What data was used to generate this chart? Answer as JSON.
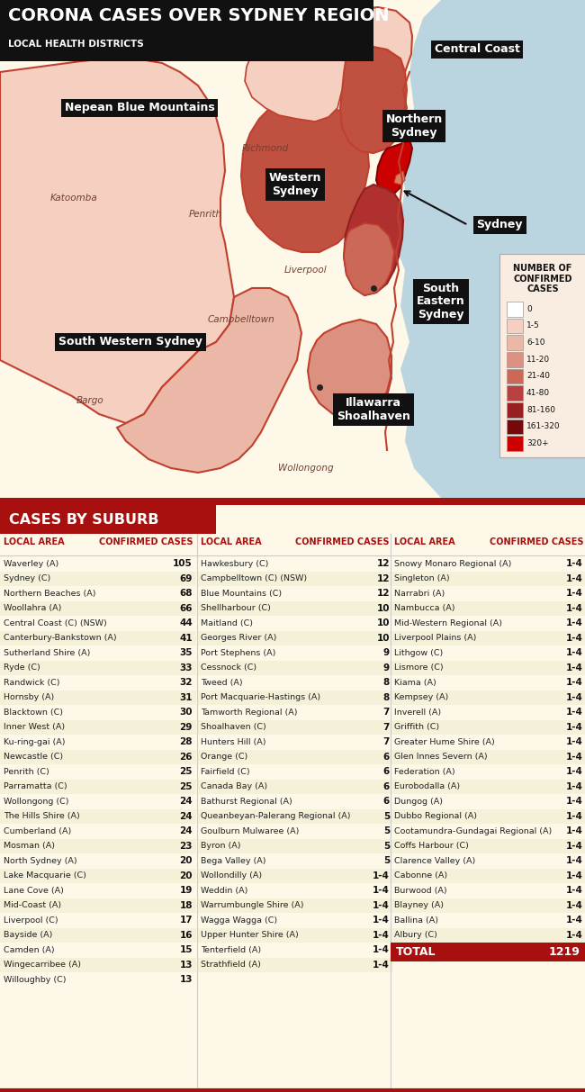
{
  "title": "CORONA CASES OVER SYDNEY REGION",
  "subtitle": "LOCAL HEALTH DISTRICTS",
  "section_title": "CASES BY SUBURB",
  "col_header_area": "LOCAL AREA",
  "col_header_cases": "CONFIRMED CASES",
  "total_label": "TOTAL",
  "total_value": "1219",
  "bg_color_top": "#f2c0a0",
  "bg_color_table": "#fdf8e8",
  "title_bg": "#111111",
  "title_color": "#ffffff",
  "section_bg": "#a81010",
  "section_color": "#ffffff",
  "header_color": "#a81010",
  "row_alt_color": "#f5f0d8",
  "row_color": "#fdf8e8",
  "ocean_color": "#bad4e0",
  "col1": [
    [
      "Waverley (A)",
      "105"
    ],
    [
      "Sydney (C)",
      "69"
    ],
    [
      "Northern Beaches (A)",
      "68"
    ],
    [
      "Woollahra (A)",
      "66"
    ],
    [
      "Central Coast (C) (NSW)",
      "44"
    ],
    [
      "Canterbury-Bankstown (A)",
      "41"
    ],
    [
      "Sutherland Shire (A)",
      "35"
    ],
    [
      "Ryde (C)",
      "33"
    ],
    [
      "Randwick (C)",
      "32"
    ],
    [
      "Hornsby (A)",
      "31"
    ],
    [
      "Blacktown (C)",
      "30"
    ],
    [
      "Inner West (A)",
      "29"
    ],
    [
      "Ku-ring-gai (A)",
      "28"
    ],
    [
      "Newcastle (C)",
      "26"
    ],
    [
      "Penrith (C)",
      "25"
    ],
    [
      "Parramatta (C)",
      "25"
    ],
    [
      "Wollongong (C)",
      "24"
    ],
    [
      "The Hills Shire (A)",
      "24"
    ],
    [
      "Cumberland (A)",
      "24"
    ],
    [
      "Mosman (A)",
      "23"
    ],
    [
      "North Sydney (A)",
      "20"
    ],
    [
      "Lake Macquarie (C)",
      "20"
    ],
    [
      "Lane Cove (A)",
      "19"
    ],
    [
      "Mid-Coast (A)",
      "18"
    ],
    [
      "Liverpool (C)",
      "17"
    ],
    [
      "Bayside (A)",
      "16"
    ],
    [
      "Camden (A)",
      "15"
    ],
    [
      "Wingecarribee (A)",
      "13"
    ],
    [
      "Willoughby (C)",
      "13"
    ]
  ],
  "col2": [
    [
      "Hawkesbury (C)",
      "12"
    ],
    [
      "Campbelltown (C) (NSW)",
      "12"
    ],
    [
      "Blue Mountains (C)",
      "12"
    ],
    [
      "Shellharbour (C)",
      "10"
    ],
    [
      "Maitland (C)",
      "10"
    ],
    [
      "Georges River (A)",
      "10"
    ],
    [
      "Port Stephens (A)",
      "9"
    ],
    [
      "Cessnock (C)",
      "9"
    ],
    [
      "Tweed (A)",
      "8"
    ],
    [
      "Port Macquarie-Hastings (A)",
      "8"
    ],
    [
      "Tamworth Regional (A)",
      "7"
    ],
    [
      "Shoalhaven (C)",
      "7"
    ],
    [
      "Hunters Hill (A)",
      "7"
    ],
    [
      "Orange (C)",
      "6"
    ],
    [
      "Fairfield (C)",
      "6"
    ],
    [
      "Canada Bay (A)",
      "6"
    ],
    [
      "Bathurst Regional (A)",
      "6"
    ],
    [
      "Queanbeyan-Palerang Regional (A)",
      "5"
    ],
    [
      "Goulburn Mulwaree (A)",
      "5"
    ],
    [
      "Byron (A)",
      "5"
    ],
    [
      "Bega Valley (A)",
      "5"
    ],
    [
      "Wollondilly (A)",
      "1-4"
    ],
    [
      "Weddin (A)",
      "1-4"
    ],
    [
      "Warrumbungle Shire (A)",
      "1-4"
    ],
    [
      "Wagga Wagga (C)",
      "1-4"
    ],
    [
      "Upper Hunter Shire (A)",
      "1-4"
    ],
    [
      "Tenterfield (A)",
      "1-4"
    ],
    [
      "Strathfield (A)",
      "1-4"
    ]
  ],
  "col3": [
    [
      "Snowy Monaro Regional (A)",
      "1-4"
    ],
    [
      "Singleton (A)",
      "1-4"
    ],
    [
      "Narrabri (A)",
      "1-4"
    ],
    [
      "Nambucca (A)",
      "1-4"
    ],
    [
      "Mid-Western Regional (A)",
      "1-4"
    ],
    [
      "Liverpool Plains (A)",
      "1-4"
    ],
    [
      "Lithgow (C)",
      "1-4"
    ],
    [
      "Lismore (C)",
      "1-4"
    ],
    [
      "Kiama (A)",
      "1-4"
    ],
    [
      "Kempsey (A)",
      "1-4"
    ],
    [
      "Inverell (A)",
      "1-4"
    ],
    [
      "Griffith (C)",
      "1-4"
    ],
    [
      "Greater Hume Shire (A)",
      "1-4"
    ],
    [
      "Glen Innes Severn (A)",
      "1-4"
    ],
    [
      "Federation (A)",
      "1-4"
    ],
    [
      "Eurobodalla (A)",
      "1-4"
    ],
    [
      "Dungog (A)",
      "1-4"
    ],
    [
      "Dubbo Regional (A)",
      "1-4"
    ],
    [
      "Cootamundra-Gundagai Regional (A)",
      "1-4"
    ],
    [
      "Coffs Harbour (C)",
      "1-4"
    ],
    [
      "Clarence Valley (A)",
      "1-4"
    ],
    [
      "Cabonne (A)",
      "1-4"
    ],
    [
      "Burwood (A)",
      "1-4"
    ],
    [
      "Blayney (A)",
      "1-4"
    ],
    [
      "Ballina (A)",
      "1-4"
    ],
    [
      "Albury (C)",
      "1-4"
    ]
  ],
  "legend_items": [
    [
      "0",
      "#ffffff"
    ],
    [
      "1-5",
      "#f5cfc0"
    ],
    [
      "6-10",
      "#ebb8a8"
    ],
    [
      "11-20",
      "#dc9080"
    ],
    [
      "21-40",
      "#cc6858"
    ],
    [
      "41-80",
      "#b84040"
    ],
    [
      "81-160",
      "#992020"
    ],
    [
      "161-320",
      "#750808"
    ],
    [
      "320+",
      "#cc0000"
    ]
  ],
  "legend_title": "NUMBER OF\nCONFIRMED\nCASES",
  "map_label_nepean": "Nepean Blue Mountains",
  "map_label_central_coast": "Central Coast",
  "map_label_northern_sydney": "Northern\nSydney",
  "map_label_western_sydney": "Western\nSydney",
  "map_label_sydney": "Sydney",
  "map_label_south_eastern": "South\nEastern\nSydney",
  "map_label_south_western": "South Western Sydney",
  "map_label_illawarra": "Illawarra\nShoalhaven",
  "map_place_richmond": "Richmond",
  "map_place_katoomba": "Katoomba",
  "map_place_penrith": "Penrith",
  "map_place_liverpool": "Liverpool",
  "map_place_campbelltown": "Campbelltown",
  "map_place_bargo": "Bargo",
  "map_place_wollongong": "Wollongong"
}
